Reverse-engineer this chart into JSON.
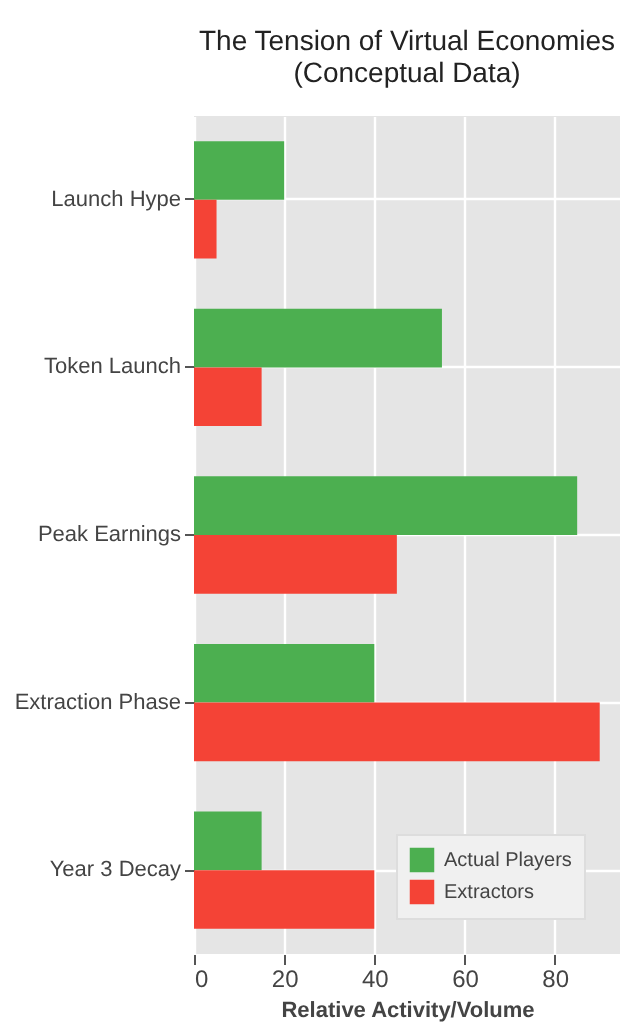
{
  "chart_data": {
    "type": "bar",
    "orientation": "horizontal",
    "title": "The Tension of Virtual Economies\n(Conceptual Data)",
    "xlabel": "Relative Activity/Volume",
    "categories": [
      "Launch Hype",
      "Token Launch",
      "Peak Earnings",
      "Extraction Phase",
      "Year 3 Decay"
    ],
    "series": [
      {
        "name": "Actual Players",
        "color": "#4caf50",
        "values": [
          20,
          55,
          85,
          40,
          15
        ]
      },
      {
        "name": "Extractors",
        "color": "#f44336",
        "values": [
          5,
          15,
          45,
          90,
          40
        ]
      }
    ],
    "xlim": [
      0,
      94.5
    ],
    "xticks": [
      0,
      20,
      40,
      60,
      80
    ],
    "grid": true,
    "legend": "bottom right"
  }
}
